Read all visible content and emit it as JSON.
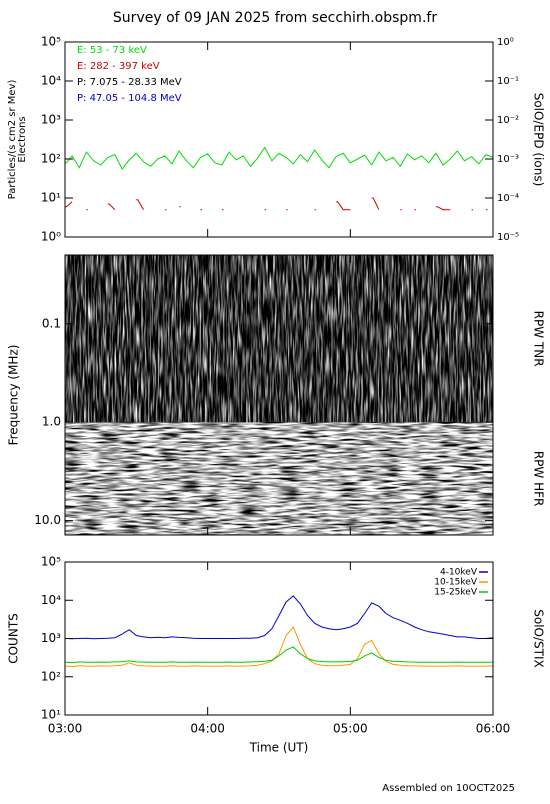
{
  "title": "Survey of 09 JAN 2025 from secchirh.obspm.fr",
  "footer": "Assembled on 10OCT2025",
  "chart_data": [
    {
      "type": "line",
      "ylog": true,
      "ylabel": [
        "Particles/(s cm2 sr Mev)",
        "Electrons"
      ],
      "y2label": "SolO/EPD (ions)",
      "legend": "upper left",
      "xlim": [
        "03:00",
        "06:00"
      ],
      "ylim": [
        1,
        100000
      ],
      "yticks": [
        {
          "value": 1,
          "label": "10⁰"
        },
        {
          "value": 10,
          "label": "10¹"
        },
        {
          "value": 100,
          "label": "10²"
        },
        {
          "value": 1000,
          "label": "10³"
        },
        {
          "value": 10000,
          "label": "10⁴"
        },
        {
          "value": 100000,
          "label": "10⁵"
        }
      ],
      "y2lim": [
        1e-05,
        1
      ],
      "y2ticks": [
        {
          "value": 1e-05,
          "label": "10⁻⁵"
        },
        {
          "value": 0.0001,
          "label": "10⁻⁴"
        },
        {
          "value": 0.001,
          "label": "10⁻³"
        },
        {
          "value": 0.01,
          "label": "10⁻²"
        },
        {
          "value": 0.1,
          "label": "10⁻¹"
        },
        {
          "value": 1,
          "label": "10⁰"
        }
      ],
      "x": [
        "03:00",
        "03:03",
        "03:06",
        "03:09",
        "03:12",
        "03:15",
        "03:18",
        "03:21",
        "03:24",
        "03:27",
        "03:30",
        "03:33",
        "03:36",
        "03:39",
        "03:42",
        "03:45",
        "03:48",
        "03:51",
        "03:54",
        "03:57",
        "04:00",
        "04:03",
        "04:06",
        "04:09",
        "04:12",
        "04:15",
        "04:18",
        "04:21",
        "04:24",
        "04:27",
        "04:30",
        "04:33",
        "04:36",
        "04:39",
        "04:42",
        "04:45",
        "04:48",
        "04:51",
        "04:54",
        "04:57",
        "05:00",
        "05:03",
        "05:06",
        "05:09",
        "05:12",
        "05:15",
        "05:18",
        "05:21",
        "05:24",
        "05:27",
        "05:30",
        "05:33",
        "05:36",
        "05:39",
        "05:42",
        "05:45",
        "05:48",
        "05:51",
        "05:54",
        "05:57",
        "06:00"
      ],
      "series": [
        {
          "name": "E: 53 - 73 keV",
          "color": "#00dd00",
          "values": [
            80,
            120,
            60,
            150,
            90,
            70,
            110,
            130,
            55,
            95,
            140,
            85,
            65,
            100,
            120,
            75,
            160,
            90,
            60,
            110,
            135,
            80,
            70,
            150,
            95,
            120,
            65,
            105,
            200,
            90,
            140,
            110,
            75,
            130,
            85,
            170,
            95,
            60,
            115,
            140,
            80,
            100,
            125,
            70,
            150,
            90,
            110,
            65,
            135,
            95,
            120,
            80,
            140,
            70,
            100,
            160,
            90,
            115,
            75,
            130,
            110
          ]
        },
        {
          "name": "E: 282 - 397 keV",
          "color": "#cc0000",
          "values": [
            6,
            8,
            null,
            5,
            null,
            null,
            7,
            5,
            null,
            null,
            9,
            5,
            null,
            null,
            5,
            null,
            6,
            null,
            null,
            5,
            null,
            null,
            5,
            null,
            null,
            null,
            null,
            null,
            5,
            null,
            null,
            5,
            null,
            null,
            null,
            5,
            null,
            null,
            8,
            5,
            5,
            null,
            null,
            10,
            5,
            null,
            null,
            5,
            null,
            5,
            null,
            null,
            6,
            5,
            5,
            null,
            null,
            5,
            null,
            5,
            null
          ]
        },
        {
          "name": "P: 7.075 - 28.33 MeV",
          "color": "#000000",
          "axis": "y2",
          "values": [
            null,
            null,
            null,
            null,
            null,
            null,
            null,
            null,
            null,
            null,
            null,
            null,
            null,
            null,
            null,
            null,
            null,
            null,
            null,
            null,
            null,
            null,
            null,
            null,
            null,
            null,
            null,
            null,
            null,
            null,
            null,
            null,
            null,
            null,
            null,
            null,
            null,
            null,
            null,
            null,
            null,
            null,
            null,
            null,
            null,
            null,
            null,
            null,
            null,
            null,
            null,
            null,
            null,
            null,
            null,
            null,
            null,
            null,
            null,
            null,
            null
          ]
        },
        {
          "name": "P: 47.05 - 104.8 MeV",
          "color": "#0000cc",
          "axis": "y2",
          "values": [
            null,
            null,
            null,
            null,
            null,
            null,
            null,
            null,
            null,
            null,
            null,
            null,
            null,
            null,
            null,
            null,
            null,
            null,
            null,
            null,
            null,
            null,
            null,
            null,
            null,
            null,
            null,
            null,
            null,
            null,
            null,
            null,
            null,
            null,
            null,
            null,
            null,
            null,
            null,
            null,
            null,
            null,
            null,
            null,
            null,
            null,
            null,
            null,
            null,
            null,
            null,
            null,
            null,
            null,
            null,
            null,
            null,
            null,
            null,
            null,
            null
          ]
        }
      ]
    },
    {
      "type": "spectrogram",
      "ylog": true,
      "yreverse": true,
      "ylabel": [
        "Frequency (MHz)"
      ],
      "annotations": [
        "RPW TNR",
        "RPW HFR"
      ],
      "xlim": [
        "03:00",
        "06:00"
      ],
      "ylim": [
        0.02,
        14
      ],
      "yticks": [
        0.1,
        {
          "value": 1,
          "label": "1.0"
        },
        {
          "value": 10,
          "label": "10.0"
        }
      ]
    },
    {
      "type": "line",
      "ylog": true,
      "ylabel": [
        "COUNTS"
      ],
      "y2label": "SolO/STIX",
      "legend": "upper right",
      "xlabel": "Time (UT)",
      "xlim": [
        "03:00",
        "06:00"
      ],
      "xticks": [
        "03:00",
        "04:00",
        "05:00",
        "06:00"
      ],
      "ylim": [
        10,
        100000
      ],
      "yticks": [
        {
          "value": 10,
          "label": "10¹"
        },
        {
          "value": 100,
          "label": "10²"
        },
        {
          "value": 1000,
          "label": "10³"
        },
        {
          "value": 10000,
          "label": "10⁴"
        },
        {
          "value": 100000,
          "label": "10⁵"
        }
      ],
      "x": [
        "03:00",
        "03:03",
        "03:06",
        "03:09",
        "03:12",
        "03:15",
        "03:18",
        "03:21",
        "03:24",
        "03:27",
        "03:30",
        "03:33",
        "03:36",
        "03:39",
        "03:42",
        "03:45",
        "03:48",
        "03:51",
        "03:54",
        "03:57",
        "04:00",
        "04:03",
        "04:06",
        "04:09",
        "04:12",
        "04:15",
        "04:18",
        "04:21",
        "04:24",
        "04:27",
        "04:30",
        "04:33",
        "04:36",
        "04:39",
        "04:42",
        "04:45",
        "04:48",
        "04:51",
        "04:54",
        "04:57",
        "05:00",
        "05:03",
        "05:06",
        "05:09",
        "05:12",
        "05:15",
        "05:18",
        "05:21",
        "05:24",
        "05:27",
        "05:30",
        "05:33",
        "05:36",
        "05:39",
        "05:42",
        "05:45",
        "05:48",
        "05:51",
        "05:54",
        "05:57",
        "06:00"
      ],
      "series": [
        {
          "name": "4-10keV",
          "color": "#0000cc",
          "values": [
            1000,
            980,
            1000,
            1010,
            990,
            1000,
            1020,
            1050,
            1300,
            1700,
            1200,
            1100,
            1050,
            1080,
            1050,
            1100,
            1070,
            1050,
            1020,
            1000,
            1000,
            1000,
            1000,
            1000,
            1000,
            1010,
            1020,
            1050,
            1200,
            1800,
            4000,
            9000,
            13000,
            8000,
            4000,
            2500,
            2000,
            1800,
            1700,
            1800,
            2000,
            2500,
            4500,
            8500,
            7000,
            4500,
            3500,
            3000,
            2500,
            2000,
            1700,
            1500,
            1400,
            1300,
            1200,
            1100,
            1100,
            1050,
            1000,
            1000,
            1050
          ]
        },
        {
          "name": "10-15keV",
          "color": "#ff9900",
          "values": [
            190,
            185,
            195,
            190,
            188,
            192,
            190,
            195,
            200,
            230,
            200,
            192,
            190,
            188,
            190,
            195,
            190,
            188,
            192,
            190,
            190,
            188,
            190,
            192,
            190,
            190,
            195,
            200,
            220,
            260,
            400,
            1200,
            2000,
            700,
            300,
            220,
            200,
            195,
            195,
            200,
            210,
            300,
            700,
            900,
            400,
            250,
            210,
            200,
            195,
            192,
            190,
            190,
            188,
            190,
            190,
            192,
            190,
            188,
            190,
            190,
            192
          ]
        },
        {
          "name": "15-25keV",
          "color": "#00cc00",
          "values": [
            240,
            235,
            245,
            240,
            238,
            242,
            240,
            245,
            248,
            260,
            245,
            242,
            240,
            238,
            240,
            245,
            240,
            238,
            242,
            240,
            240,
            238,
            240,
            242,
            240,
            240,
            245,
            248,
            255,
            270,
            350,
            500,
            600,
            400,
            300,
            260,
            250,
            245,
            245,
            248,
            250,
            270,
            350,
            420,
            320,
            270,
            255,
            250,
            245,
            242,
            240,
            240,
            238,
            240,
            240,
            242,
            240,
            238,
            240,
            240,
            242
          ]
        }
      ]
    }
  ]
}
